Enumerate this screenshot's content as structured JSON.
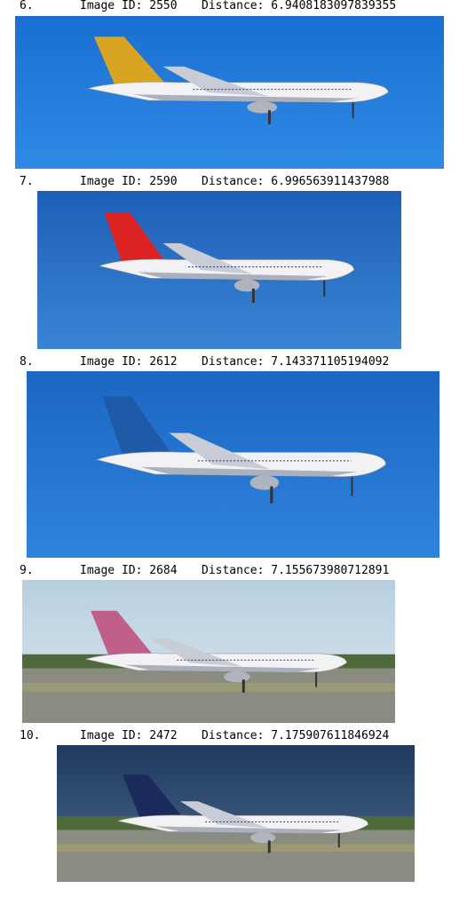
{
  "results": [
    {
      "rank": "6.",
      "id_text": "Image ID: 2550",
      "distance_text": "Distance: 6.9408183097839355"
    },
    {
      "rank": "7.",
      "id_text": "Image ID: 2590",
      "distance_text": "Distance: 6.996563911437988"
    },
    {
      "rank": "8.",
      "id_text": "Image ID: 2612",
      "distance_text": "Distance: 7.143371105194092"
    },
    {
      "rank": "9.",
      "id_text": "Image ID: 2684",
      "distance_text": "Distance: 7.155673980712891"
    },
    {
      "rank": "10.",
      "id_text": "Image ID: 2472",
      "distance_text": "Distance: 7.175907611846924"
    }
  ]
}
